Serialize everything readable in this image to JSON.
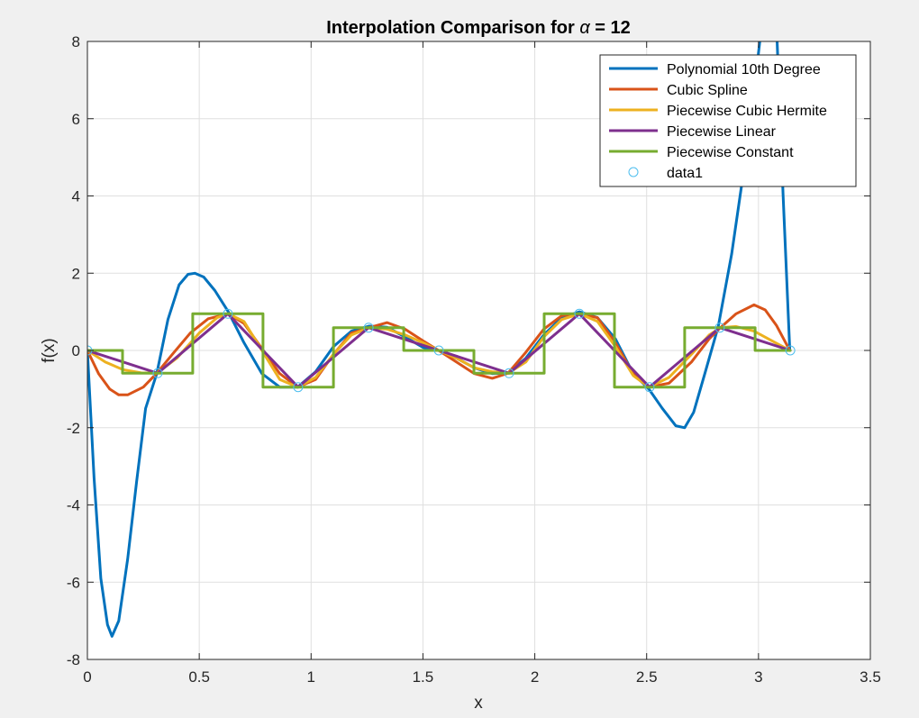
{
  "chart_data": {
    "type": "line",
    "title_prefix": "Interpolation Comparison for ",
    "title_symbol": "α",
    "title_suffix": " = 12",
    "xlabel": "x",
    "ylabel": "f(x)",
    "xlim": [
      0,
      3.5
    ],
    "ylim": [
      -8,
      8
    ],
    "xticks": [
      0,
      0.5,
      1,
      1.5,
      2,
      2.5,
      3,
      3.5
    ],
    "xtick_labels": [
      "0",
      "0.5",
      "1",
      "1.5",
      "2",
      "2.5",
      "3",
      "3.5"
    ],
    "yticks": [
      -8,
      -6,
      -4,
      -2,
      0,
      2,
      4,
      6,
      8
    ],
    "ytick_labels": [
      "-8",
      "-6",
      "-4",
      "-2",
      "0",
      "2",
      "4",
      "6",
      "8"
    ],
    "grid": true,
    "legend_position": "top-right",
    "series": [
      {
        "name": "Polynomial 10th Degree",
        "color": "#0072BD",
        "style": "line",
        "x": [
          0,
          0.03,
          0.06,
          0.09,
          0.11,
          0.14,
          0.18,
          0.22,
          0.26,
          0.31,
          0.36,
          0.41,
          0.45,
          0.48,
          0.52,
          0.57,
          0.63,
          0.7,
          0.78,
          0.86,
          0.94,
          1.02,
          1.1,
          1.18,
          1.26,
          1.34,
          1.42,
          1.5,
          1.57,
          1.65,
          1.73,
          1.81,
          1.88,
          1.96,
          2.04,
          2.12,
          2.2,
          2.28,
          2.36,
          2.44,
          2.51,
          2.57,
          2.63,
          2.67,
          2.71,
          2.76,
          2.82,
          2.88,
          2.93,
          2.97,
          3.01,
          3.05,
          3.08,
          3.11,
          3.14
        ],
        "y": [
          0,
          -3.3,
          -5.9,
          -7.1,
          -7.4,
          -7.0,
          -5.4,
          -3.4,
          -1.5,
          -0.6,
          0.8,
          1.7,
          1.97,
          2.0,
          1.9,
          1.55,
          1.0,
          0.2,
          -0.6,
          -0.95,
          -0.95,
          -0.55,
          0.1,
          0.5,
          0.63,
          0.6,
          0.35,
          0.08,
          0,
          -0.2,
          -0.45,
          -0.6,
          -0.58,
          -0.2,
          0.4,
          0.85,
          1.0,
          0.85,
          0.3,
          -0.6,
          -1.0,
          -1.5,
          -1.95,
          -2.0,
          -1.6,
          -0.6,
          0.62,
          2.5,
          4.5,
          6.2,
          8.2,
          9.5,
          8.5,
          4.0,
          0
        ]
      },
      {
        "name": "Cubic Spline",
        "color": "#D95319",
        "style": "line",
        "x": [
          0,
          0.05,
          0.1,
          0.14,
          0.18,
          0.25,
          0.31,
          0.38,
          0.46,
          0.54,
          0.63,
          0.7,
          0.78,
          0.86,
          0.94,
          1.02,
          1.1,
          1.18,
          1.26,
          1.34,
          1.42,
          1.5,
          1.57,
          1.65,
          1.73,
          1.81,
          1.88,
          1.96,
          2.04,
          2.12,
          2.2,
          2.28,
          2.36,
          2.44,
          2.51,
          2.6,
          2.7,
          2.78,
          2.83,
          2.9,
          2.98,
          3.03,
          3.08,
          3.14
        ],
        "y": [
          0,
          -0.6,
          -1.0,
          -1.15,
          -1.15,
          -0.95,
          -0.59,
          -0.1,
          0.45,
          0.82,
          0.95,
          0.7,
          0.05,
          -0.6,
          -0.95,
          -0.75,
          -0.1,
          0.45,
          0.59,
          0.72,
          0.55,
          0.25,
          0,
          -0.3,
          -0.6,
          -0.72,
          -0.59,
          -0.05,
          0.55,
          0.9,
          0.95,
          0.85,
          0.2,
          -0.6,
          -0.95,
          -0.85,
          -0.3,
          0.3,
          0.59,
          0.95,
          1.18,
          1.05,
          0.65,
          0
        ]
      },
      {
        "name": "Piecewise Cubic Hermite",
        "color": "#EDB120",
        "style": "line",
        "x": [
          0,
          0.08,
          0.16,
          0.24,
          0.31,
          0.4,
          0.5,
          0.58,
          0.63,
          0.7,
          0.78,
          0.86,
          0.94,
          1.02,
          1.1,
          1.18,
          1.26,
          1.34,
          1.42,
          1.5,
          1.57,
          1.65,
          1.73,
          1.81,
          1.88,
          1.96,
          2.04,
          2.12,
          2.2,
          2.28,
          2.36,
          2.44,
          2.51,
          2.6,
          2.7,
          2.78,
          2.83,
          2.9,
          2.98,
          3.06,
          3.14
        ],
        "y": [
          0,
          -0.3,
          -0.5,
          -0.58,
          -0.59,
          -0.2,
          0.45,
          0.85,
          0.95,
          0.75,
          0.0,
          -0.75,
          -0.95,
          -0.7,
          -0.1,
          0.4,
          0.59,
          0.55,
          0.4,
          0.2,
          0,
          -0.2,
          -0.45,
          -0.55,
          -0.59,
          -0.3,
          0.35,
          0.8,
          0.95,
          0.75,
          0.1,
          -0.65,
          -0.95,
          -0.7,
          -0.1,
          0.4,
          0.59,
          0.62,
          0.5,
          0.25,
          0
        ]
      },
      {
        "name": "Piecewise Linear",
        "color": "#7E2F8E",
        "style": "line",
        "x": [
          0,
          0.314,
          0.628,
          0.942,
          1.257,
          1.571,
          1.885,
          2.199,
          2.513,
          2.827,
          3.142
        ],
        "y": [
          0,
          -0.59,
          0.95,
          -0.95,
          0.59,
          0,
          -0.59,
          0.95,
          -0.95,
          0.59,
          0
        ]
      },
      {
        "name": "Piecewise Constant",
        "color": "#77AC30",
        "style": "step",
        "x": [
          0,
          0.157,
          0.157,
          0.471,
          0.471,
          0.785,
          0.785,
          1.1,
          1.1,
          1.414,
          1.414,
          1.728,
          1.728,
          2.042,
          2.042,
          2.356,
          2.356,
          2.67,
          2.67,
          2.985,
          2.985,
          3.142
        ],
        "y": [
          0,
          0,
          -0.59,
          -0.59,
          0.95,
          0.95,
          -0.95,
          -0.95,
          0.59,
          0.59,
          0,
          0,
          -0.59,
          -0.59,
          0.95,
          0.95,
          -0.95,
          -0.95,
          0.59,
          0.59,
          0,
          0
        ]
      },
      {
        "name": "data1",
        "color": "#4DBEEE",
        "style": "marker",
        "x": [
          0,
          0.314,
          0.628,
          0.942,
          1.257,
          1.571,
          1.885,
          2.199,
          2.513,
          2.827,
          3.142
        ],
        "y": [
          0,
          -0.59,
          0.95,
          -0.95,
          0.59,
          0,
          -0.59,
          0.95,
          -0.95,
          0.59,
          0
        ]
      }
    ]
  }
}
